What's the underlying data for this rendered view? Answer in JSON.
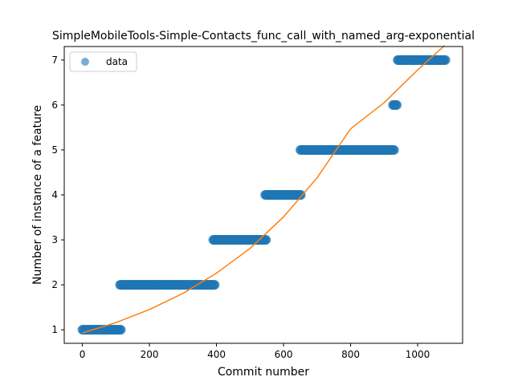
{
  "chart_data": {
    "type": "scatter",
    "title": "SimpleMobileTools-Simple-Contacts_func_call_with_named_arg-exponential",
    "xlabel": "Commit number",
    "ylabel": "Number of instance of a feature",
    "xlim": [
      -54,
      1134
    ],
    "ylim": [
      0.7,
      7.3
    ],
    "xticks": [
      0,
      200,
      400,
      600,
      800,
      1000
    ],
    "yticks": [
      1,
      2,
      3,
      4,
      5,
      6,
      7
    ],
    "legend": {
      "position": "top-left",
      "entries": [
        "data"
      ]
    },
    "colors": {
      "data": "#1f77b4",
      "fit": "#ff7f0e"
    },
    "series": [
      {
        "name": "data",
        "kind": "points",
        "segments": [
          {
            "x_start": 0,
            "x_end": 115,
            "y": 1
          },
          {
            "x_start": 112,
            "x_end": 395,
            "y": 2
          },
          {
            "x_start": 390,
            "x_end": 548,
            "y": 3
          },
          {
            "x_start": 545,
            "x_end": 652,
            "y": 4
          },
          {
            "x_start": 650,
            "x_end": 930,
            "y": 5
          },
          {
            "x_start": 926,
            "x_end": 938,
            "y": 6
          },
          {
            "x_start": 940,
            "x_end": 1083,
            "y": 7
          }
        ]
      },
      {
        "name": "",
        "kind": "line",
        "x": [
          0,
          100,
          200,
          300,
          400,
          500,
          600,
          700,
          800,
          900,
          1000,
          1080
        ],
        "y": [
          0.93,
          1.16,
          1.45,
          1.81,
          2.26,
          2.81,
          3.51,
          4.38,
          5.47,
          6.05,
          6.78,
          7.32
        ]
      }
    ]
  }
}
